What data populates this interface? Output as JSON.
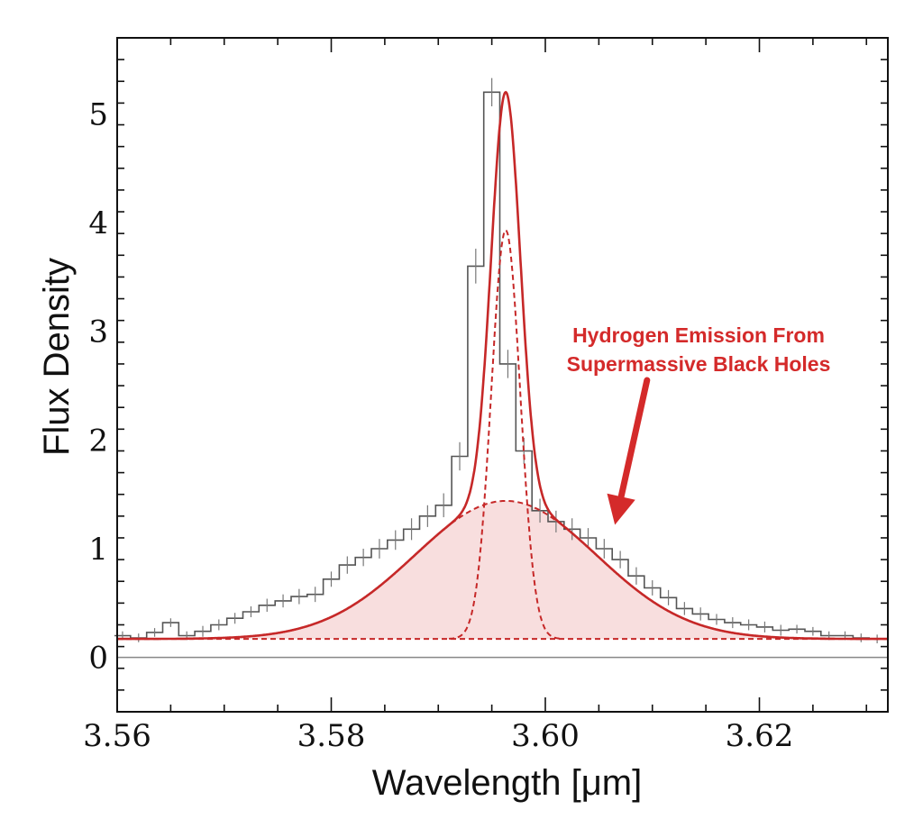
{
  "chart_data": {
    "type": "line",
    "xlabel": "Wavelength [μm]",
    "ylabel": "Flux Density",
    "xlim": [
      3.56,
      3.632
    ],
    "ylim": [
      -0.5,
      5.7
    ],
    "x_ticks": [
      3.56,
      3.58,
      3.6,
      3.62
    ],
    "x_tick_labels": [
      "3.56",
      "3.58",
      "3.60",
      "3.62"
    ],
    "y_ticks": [
      0,
      1,
      2,
      3,
      4,
      5
    ],
    "y_tick_labels": [
      "0",
      "1",
      "2",
      "3",
      "4",
      "5"
    ],
    "zero_line": 0,
    "annotation": {
      "lines": [
        "Hydrogen Emission From",
        "Supermassive Black Holes"
      ],
      "color": "#d42a2a",
      "arrow_target": [
        3.6065,
        1.22
      ],
      "arrow_tail": [
        3.6095,
        2.55
      ]
    },
    "series": [
      {
        "style": "histogram-with-errorbars",
        "color": "#555555",
        "x": [
          3.5605,
          3.562,
          3.5635,
          3.565,
          3.5665,
          3.568,
          3.5695,
          3.571,
          3.5725,
          3.574,
          3.5755,
          3.577,
          3.5785,
          3.58,
          3.5815,
          3.583,
          3.5845,
          3.586,
          3.5875,
          3.589,
          3.5905,
          3.592,
          3.5935,
          3.595,
          3.5965,
          3.598,
          3.5995,
          3.601,
          3.6025,
          3.604,
          3.6055,
          3.607,
          3.6085,
          3.61,
          3.6115,
          3.613,
          3.6145,
          3.616,
          3.6175,
          3.619,
          3.6205,
          3.622,
          3.6235,
          3.625,
          3.6265,
          3.628,
          3.6295,
          3.631
        ],
        "y": [
          0.2,
          0.18,
          0.23,
          0.32,
          0.2,
          0.24,
          0.3,
          0.36,
          0.42,
          0.48,
          0.52,
          0.56,
          0.58,
          0.72,
          0.85,
          0.92,
          1.0,
          1.08,
          1.18,
          1.3,
          1.4,
          1.85,
          3.6,
          5.2,
          2.7,
          1.9,
          1.35,
          1.25,
          1.18,
          1.1,
          1.0,
          0.9,
          0.75,
          0.64,
          0.55,
          0.45,
          0.4,
          0.35,
          0.32,
          0.3,
          0.28,
          0.25,
          0.26,
          0.24,
          0.2,
          0.2,
          0.18,
          0.17
        ],
        "err": [
          0.04,
          0.04,
          0.04,
          0.04,
          0.04,
          0.05,
          0.05,
          0.05,
          0.05,
          0.06,
          0.06,
          0.07,
          0.07,
          0.07,
          0.08,
          0.08,
          0.09,
          0.09,
          0.1,
          0.1,
          0.11,
          0.13,
          0.16,
          0.13,
          0.13,
          0.12,
          0.11,
          0.1,
          0.1,
          0.09,
          0.09,
          0.08,
          0.08,
          0.07,
          0.07,
          0.06,
          0.06,
          0.05,
          0.05,
          0.05,
          0.05,
          0.05,
          0.04,
          0.04,
          0.04,
          0.04,
          0.04,
          0.04
        ]
      },
      {
        "style": "solid",
        "color": "#c62828",
        "component": "total-fit",
        "baseline": 0.17,
        "broad": {
          "center": 3.5963,
          "sigma": 0.0085,
          "amplitude": 1.27
        },
        "narrow": {
          "center": 3.5963,
          "sigma": 0.00135,
          "amplitude": 3.76
        }
      },
      {
        "style": "dashed",
        "color": "#c62828",
        "component": "broad",
        "fill": "#f8dede",
        "baseline": 0.17,
        "center": 3.5963,
        "sigma": 0.0085,
        "amplitude": 1.27
      },
      {
        "style": "dashed",
        "color": "#c62828",
        "component": "narrow",
        "baseline": 0.17,
        "center": 3.5963,
        "sigma": 0.00135,
        "amplitude": 3.76,
        "x_range": [
          3.591,
          3.6015
        ]
      },
      {
        "style": "dashed",
        "color": "#c62828",
        "component": "continuum",
        "value": 0.17
      }
    ]
  }
}
